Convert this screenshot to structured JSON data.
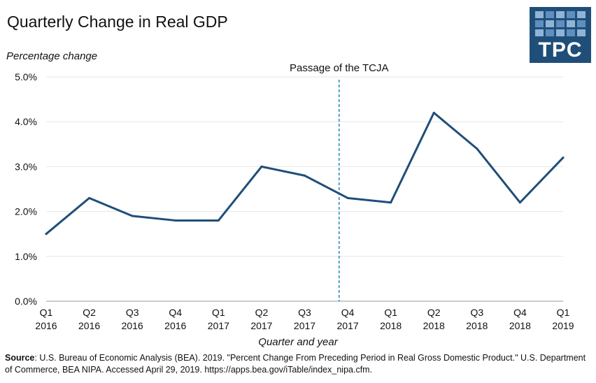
{
  "title": "Quarterly Change in Real GDP",
  "logo": {
    "text": "TPC"
  },
  "source": {
    "label": "Source",
    "text": ": U.S. Bureau of Economic Analysis (BEA). 2019. \"Percent Change From Preceding Period in Real Gross Domestic Product.\" U.S. Department of Commerce, BEA NIPA. Accessed April 29, 2019. https://apps.bea.gov/iTable/index_nipa.cfm."
  },
  "chart_data": {
    "type": "line",
    "title": "Quarterly Change in Real GDP",
    "ylabel": "Percentage change",
    "xlabel": "Quarter and year",
    "categories": [
      [
        "Q1",
        "2016"
      ],
      [
        "Q2",
        "2016"
      ],
      [
        "Q3",
        "2016"
      ],
      [
        "Q4",
        "2016"
      ],
      [
        "Q1",
        "2017"
      ],
      [
        "Q2",
        "2017"
      ],
      [
        "Q3",
        "2017"
      ],
      [
        "Q4",
        "2017"
      ],
      [
        "Q1",
        "2018"
      ],
      [
        "Q2",
        "2018"
      ],
      [
        "Q3",
        "2018"
      ],
      [
        "Q4",
        "2018"
      ],
      [
        "Q1",
        "2019"
      ]
    ],
    "series": [
      {
        "values": [
          1.5,
          2.3,
          1.9,
          1.8,
          1.8,
          3.0,
          2.8,
          2.3,
          2.2,
          4.2,
          3.4,
          2.2,
          3.2
        ],
        "color": "#1f4e79"
      }
    ],
    "ylim": [
      0,
      5
    ],
    "yticks": [
      "0.0%",
      "1.0%",
      "2.0%",
      "3.0%",
      "4.0%",
      "5.0%"
    ],
    "grid": true,
    "annotation": {
      "text": "Passage of the TCJA",
      "x_value": 6.8,
      "color": "#2e8bc0",
      "style": "dashed"
    }
  }
}
